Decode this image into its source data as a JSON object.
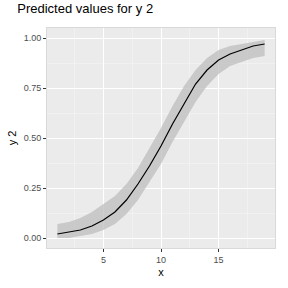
{
  "chart_data": {
    "type": "line",
    "title": "Predicted values for y 2",
    "x_label": "x",
    "y_label": "y 2",
    "x": [
      1,
      2,
      3,
      4,
      5,
      6,
      7,
      8,
      9,
      10,
      11,
      12,
      13,
      14,
      15,
      16,
      17,
      18,
      19
    ],
    "series": [
      {
        "color": "#000000",
        "values": [
          0.02,
          0.03,
          0.04,
          0.06,
          0.09,
          0.13,
          0.19,
          0.27,
          0.36,
          0.46,
          0.57,
          0.67,
          0.77,
          0.84,
          0.89,
          0.92,
          0.94,
          0.96,
          0.97
        ],
        "lower": [
          0.0,
          0.0,
          0.01,
          0.02,
          0.04,
          0.07,
          0.12,
          0.19,
          0.28,
          0.37,
          0.48,
          0.58,
          0.68,
          0.76,
          0.82,
          0.86,
          0.88,
          0.9,
          0.91
        ],
        "upper": [
          0.07,
          0.08,
          0.1,
          0.13,
          0.17,
          0.21,
          0.27,
          0.35,
          0.45,
          0.55,
          0.66,
          0.76,
          0.84,
          0.9,
          0.94,
          0.96,
          0.97,
          0.98,
          0.99
        ]
      }
    ],
    "xlim": [
      0.1,
      19.9
    ],
    "ylim": [
      -0.05,
      1.05
    ],
    "xticks": [
      5,
      10,
      15
    ],
    "yticks": [
      {
        "value": 0,
        "label": "0.00"
      },
      {
        "value": 0.25,
        "label": "0.25"
      },
      {
        "value": 0.5,
        "label": "0.50"
      },
      {
        "value": 0.75,
        "label": "0.75"
      },
      {
        "value": 1,
        "label": "1.00"
      }
    ],
    "grid": true
  }
}
